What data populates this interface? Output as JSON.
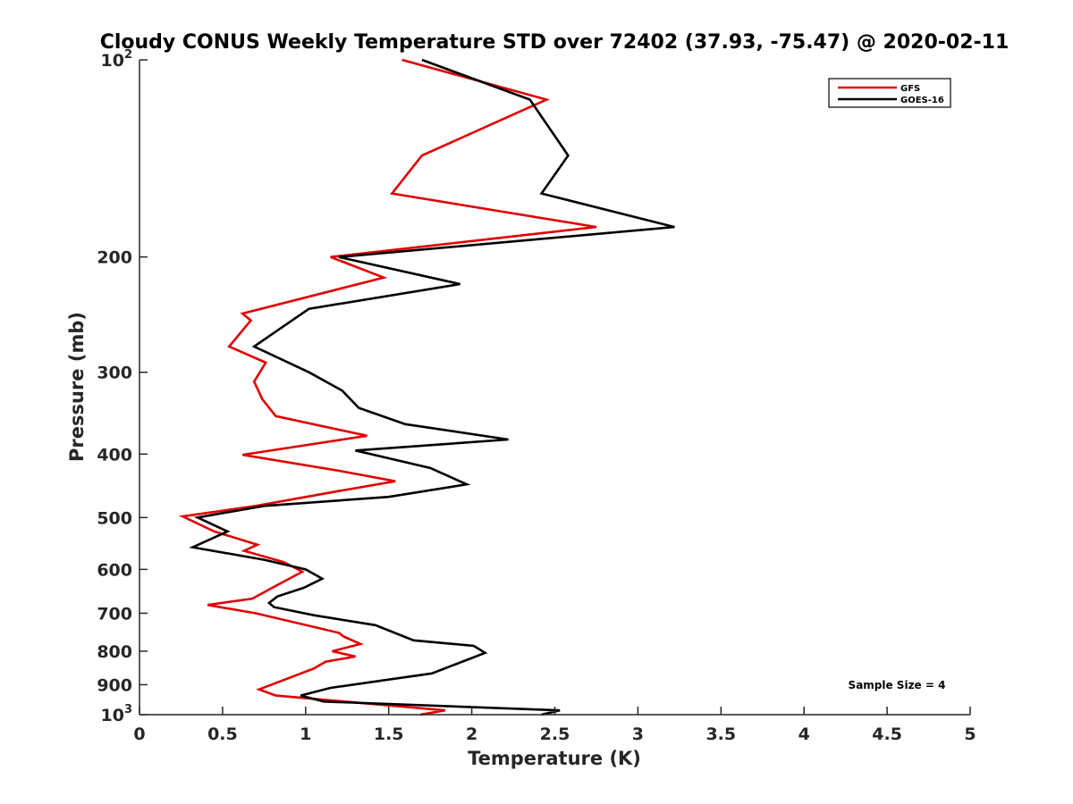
{
  "chart_data": {
    "type": "line",
    "title": "Cloudy CONUS Weekly Temperature STD over 72402 (37.93, -75.47) @ 2020-02-11",
    "xlabel": "Temperature (K)",
    "ylabel": "Pressure (mb)",
    "xlim": [
      0,
      5
    ],
    "ylim": [
      100,
      1000
    ],
    "y_scale": "log",
    "y_reversed": true,
    "grid": false,
    "legend_position": "top-right",
    "x_ticks": [
      0,
      0.5,
      1,
      1.5,
      2,
      2.5,
      3,
      3.5,
      4,
      4.5,
      5
    ],
    "x_tick_labels": [
      "0",
      "0.5",
      "1",
      "1.5",
      "2",
      "2.5",
      "3",
      "3.5",
      "4",
      "4.5",
      "5"
    ],
    "y_ticks": [
      100,
      200,
      300,
      400,
      500,
      600,
      700,
      800,
      900,
      1000
    ],
    "y_tick_labels": [
      {
        "base": "10",
        "exp": "2"
      },
      {
        "base": "200",
        "exp": ""
      },
      {
        "base": "300",
        "exp": ""
      },
      {
        "base": "400",
        "exp": ""
      },
      {
        "base": "500",
        "exp": ""
      },
      {
        "base": "600",
        "exp": ""
      },
      {
        "base": "700",
        "exp": ""
      },
      {
        "base": "800",
        "exp": ""
      },
      {
        "base": "900",
        "exp": ""
      },
      {
        "base": "10",
        "exp": "3"
      }
    ],
    "annotation": "Sample Size = 4",
    "series": [
      {
        "name": "GFS",
        "color": "#e00000",
        "points": [
          [
            1.58,
            100
          ],
          [
            2.45,
            115
          ],
          [
            1.7,
            140
          ],
          [
            1.52,
            160
          ],
          [
            2.75,
            180
          ],
          [
            1.15,
            200
          ],
          [
            1.47,
            215
          ],
          [
            0.62,
            244
          ],
          [
            0.67,
            250
          ],
          [
            0.54,
            274
          ],
          [
            0.76,
            290
          ],
          [
            0.69,
            310
          ],
          [
            0.74,
            330
          ],
          [
            0.82,
            350
          ],
          [
            1.37,
            375
          ],
          [
            0.62,
            401
          ],
          [
            1.22,
            425
          ],
          [
            1.54,
            440
          ],
          [
            1.21,
            455
          ],
          [
            0.7,
            480
          ],
          [
            0.26,
            498
          ],
          [
            0.45,
            525
          ],
          [
            0.71,
            550
          ],
          [
            0.63,
            562
          ],
          [
            0.87,
            585
          ],
          [
            0.98,
            605
          ],
          [
            0.8,
            640
          ],
          [
            0.68,
            665
          ],
          [
            0.41,
            680
          ],
          [
            0.7,
            700
          ],
          [
            1.2,
            750
          ],
          [
            1.23,
            760
          ],
          [
            1.33,
            780
          ],
          [
            1.16,
            800
          ],
          [
            1.3,
            815
          ],
          [
            1.12,
            830
          ],
          [
            1.05,
            850
          ],
          [
            0.72,
            915
          ],
          [
            0.82,
            935
          ],
          [
            1.84,
            985
          ],
          [
            1.69,
            1000
          ]
        ]
      },
      {
        "name": "GOES-16",
        "color": "#000000",
        "points": [
          [
            1.7,
            100
          ],
          [
            2.35,
            115
          ],
          [
            2.58,
            140
          ],
          [
            2.42,
            160
          ],
          [
            3.22,
            180
          ],
          [
            1.2,
            200
          ],
          [
            1.93,
            220
          ],
          [
            1.02,
            240
          ],
          [
            0.82,
            260
          ],
          [
            0.69,
            274
          ],
          [
            1.02,
            300
          ],
          [
            1.22,
            320
          ],
          [
            1.32,
            340
          ],
          [
            1.6,
            360
          ],
          [
            2.22,
            380
          ],
          [
            1.3,
            395
          ],
          [
            1.75,
            420
          ],
          [
            1.97,
            445
          ],
          [
            1.5,
            465
          ],
          [
            0.75,
            480
          ],
          [
            0.35,
            500
          ],
          [
            0.53,
            525
          ],
          [
            0.32,
            555
          ],
          [
            0.75,
            580
          ],
          [
            1.0,
            600
          ],
          [
            1.1,
            620
          ],
          [
            0.99,
            640
          ],
          [
            0.83,
            660
          ],
          [
            0.78,
            675
          ],
          [
            0.81,
            685
          ],
          [
            1.05,
            705
          ],
          [
            1.42,
            730
          ],
          [
            1.65,
            770
          ],
          [
            2.01,
            785
          ],
          [
            2.03,
            790
          ],
          [
            2.08,
            805
          ],
          [
            1.76,
            865
          ],
          [
            1.15,
            910
          ],
          [
            0.97,
            935
          ],
          [
            1.11,
            955
          ],
          [
            2.53,
            985
          ],
          [
            2.42,
            1000
          ]
        ]
      }
    ]
  }
}
